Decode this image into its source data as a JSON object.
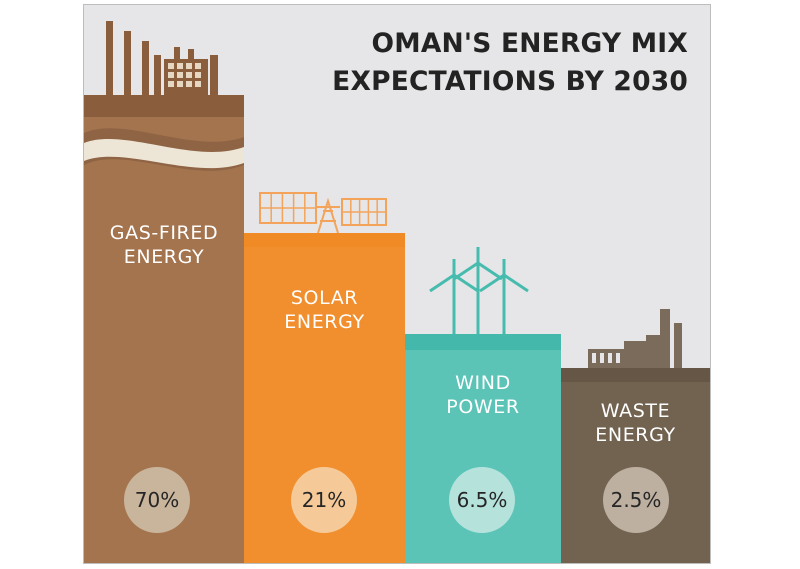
{
  "title_line1": "OMAN'S ENERGY MIX",
  "title_line2": "EXPECTATIONS BY 2030",
  "chart_data": {
    "type": "bar",
    "title": "OMAN'S ENERGY MIX EXPECTATIONS BY 2030",
    "categories": [
      "GAS-FIRED ENERGY",
      "SOLAR ENERGY",
      "WIND POWER",
      "WASTE ENERGY"
    ],
    "values": [
      70,
      21,
      6.5,
      2.5
    ],
    "value_labels": [
      "70%",
      "21%",
      "6.5%",
      "2.5%"
    ],
    "unit": "%",
    "xlabel": "",
    "ylabel": "",
    "grid": false,
    "legend": "none"
  },
  "bars": [
    {
      "line1": "GAS-FIRED",
      "line2": "ENERGY",
      "pct": "70%",
      "color": "#a4744f",
      "top_color": "#8a5d3d",
      "circle_color": "#c9b49c"
    },
    {
      "line1": "SOLAR",
      "line2": "ENERGY",
      "pct": "21%",
      "color": "#f18e2d",
      "top_color": "#f08a25",
      "circle_color": "#f6c998"
    },
    {
      "line1": "WIND",
      "line2": "POWER",
      "pct": "6.5%",
      "color": "#5cc4b7",
      "top_color": "#44b8aa",
      "circle_color": "#b5e3dc"
    },
    {
      "line1": "WASTE",
      "line2": "ENERGY",
      "pct": "2.5%",
      "color": "#726351",
      "top_color": "#665645",
      "circle_color": "#bdb0a1"
    }
  ]
}
